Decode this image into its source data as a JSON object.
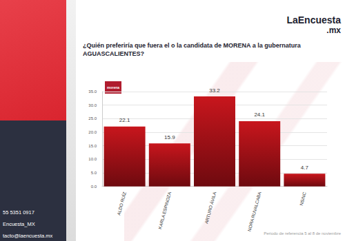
{
  "header": {
    "logo": "LaEncuesta",
    "logo_suffix": ".mx",
    "title_lines": [
      "¿Quién preferiría que fuera el o la candidata de MORENA a la gubernatura",
      "AGUASCALIENTES?"
    ]
  },
  "badge": "morena",
  "sidebar": {
    "contacts": [
      "55 5351 0917",
      "Encuesta_MX",
      "tacto@laencuesta.mx"
    ]
  },
  "footer": "Periodo de referencia 5 al 8 de noviembre",
  "chart_data": {
    "type": "bar",
    "categories": [
      "ALDO RUÍZ",
      "KARLA ESPINOZA",
      "ARTURO ÁVILA",
      "NORA RUVALCABA",
      "NS/NC"
    ],
    "values": [
      22.1,
      15.9,
      33.2,
      24.1,
      4.7
    ],
    "color": "#c8161d",
    "ylim": [
      0,
      35
    ],
    "yticks": [
      {
        "value": 0,
        "label": "0.0"
      },
      {
        "value": 5,
        "label": "5.0"
      },
      {
        "value": 10,
        "label": "10.0"
      },
      {
        "value": 15,
        "label": "15.0"
      },
      {
        "value": 20,
        "label": "20.0"
      },
      {
        "value": 25,
        "label": "25.0"
      },
      {
        "value": 30,
        "label": "30.0"
      },
      {
        "value": 35,
        "label": "35.0"
      }
    ],
    "grid": true,
    "data_labels": true
  }
}
